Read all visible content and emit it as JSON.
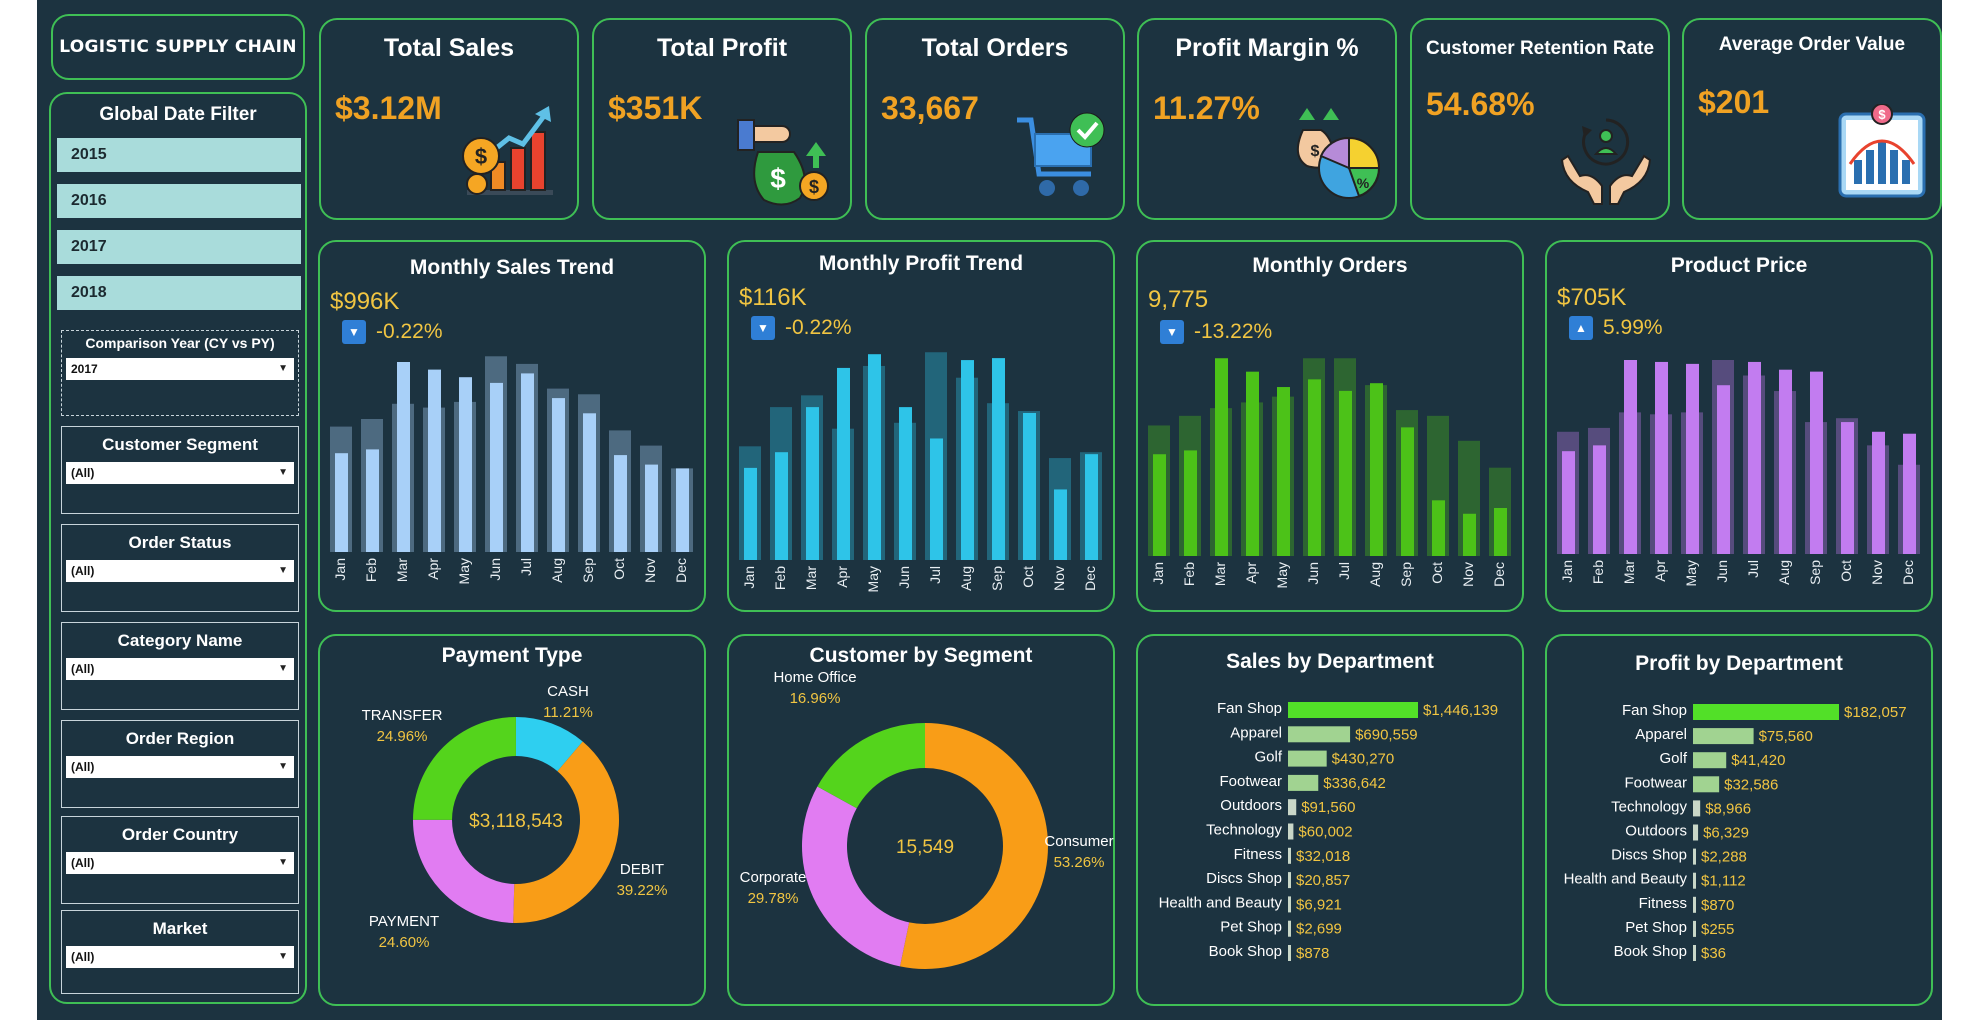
{
  "sidebar": {
    "app_title": "LOGISTIC SUPPLY CHAIN",
    "date_filter_label": "Global Date Filter",
    "years": [
      "2015",
      "2016",
      "2017",
      "2018"
    ],
    "comparison": {
      "label": "Comparison Year (CY vs PY)",
      "value": "2017"
    },
    "customer_segment": {
      "label": "Customer Segment",
      "value": "(All)"
    },
    "order_status": {
      "label": "Order Status",
      "value": "(All)"
    },
    "category_name": {
      "label": "Category Name",
      "value": "(All)"
    },
    "order_region": {
      "label": "Order Region",
      "value": "(All)"
    },
    "order_country": {
      "label": "Order Country",
      "value": "(All)"
    },
    "market": {
      "label": "Market",
      "value": "(All)"
    }
  },
  "kpis": [
    {
      "title": "Total Sales",
      "value": "$3.12M",
      "icon": "sales-growth-icon"
    },
    {
      "title": "Total Profit",
      "value": "$351K",
      "icon": "money-bag-icon"
    },
    {
      "title": "Total Orders",
      "value": "33,667",
      "icon": "shopping-cart-icon"
    },
    {
      "title": "Profit Margin %",
      "value": "11.27%",
      "icon": "profit-pie-icon"
    },
    {
      "title": "Customer Retention Rate",
      "value": "54.68%",
      "icon": "retention-hands-icon"
    },
    {
      "title": "Average Order Value",
      "value": "$201",
      "icon": "order-value-chart-icon"
    }
  ],
  "colors": {
    "background": "#1c3340",
    "panel_border": "#3fbf55",
    "kpi_value": "#f0a223",
    "label_yellow": "#f1c542",
    "sales_bar": "#a8d0f8",
    "profit_bar": "#2ec4e8",
    "orders_bar": "#4cc218",
    "price_bar": "#c27cf0",
    "dept_bar": "#52e028"
  },
  "chart_data": [
    {
      "type": "bar",
      "title": "Monthly Sales Trend",
      "headline": "$996K",
      "change": "-0.22%",
      "direction": "down",
      "categories": [
        "Jan",
        "Feb",
        "Mar",
        "Apr",
        "May",
        "Jun",
        "Jul",
        "Aug",
        "Sep",
        "Oct",
        "Nov",
        "Dec"
      ],
      "series": [
        {
          "name": "CY",
          "values": [
            52,
            54,
            100,
            96,
            92,
            89,
            94,
            81,
            73,
            51,
            46,
            44
          ]
        },
        {
          "name": "PY",
          "values": [
            66,
            70,
            78,
            76,
            79,
            103,
            99,
            86,
            83,
            64,
            56,
            44
          ]
        }
      ]
    },
    {
      "type": "bar",
      "title": "Monthly Profit Trend",
      "headline": "$116K",
      "change": "-0.22%",
      "direction": "down",
      "categories": [
        "Jan",
        "Feb",
        "Mar",
        "Apr",
        "May",
        "Jun",
        "Jul",
        "Aug",
        "Sep",
        "Oct",
        "Nov",
        "Dec"
      ],
      "series": [
        {
          "name": "CY",
          "values": [
            47,
            55,
            78,
            98,
            105,
            78,
            62,
            102,
            103,
            75,
            36,
            54
          ]
        },
        {
          "name": "PY",
          "values": [
            58,
            78,
            84,
            67,
            99,
            70,
            106,
            93,
            80,
            76,
            52,
            55
          ]
        }
      ]
    },
    {
      "type": "bar",
      "title": "Monthly Orders",
      "headline": "9,775",
      "change": "-13.22%",
      "direction": "down",
      "categories": [
        "Jan",
        "Feb",
        "Mar",
        "Apr",
        "May",
        "Jun",
        "Jul",
        "Aug",
        "Sep",
        "Oct",
        "Nov",
        "Dec"
      ],
      "series": [
        {
          "name": "CY",
          "values": [
            53,
            55,
            103,
            96,
            88,
            92,
            86,
            90,
            67,
            29,
            22,
            25
          ]
        },
        {
          "name": "PY",
          "values": [
            68,
            73,
            77,
            80,
            83,
            103,
            103,
            89,
            76,
            73,
            60,
            46
          ]
        }
      ]
    },
    {
      "type": "bar",
      "title": "Product Price",
      "headline": "$705K",
      "change": "5.99%",
      "direction": "up",
      "categories": [
        "Jan",
        "Feb",
        "Mar",
        "Apr",
        "May",
        "Jun",
        "Jul",
        "Aug",
        "Sep",
        "Oct",
        "Nov",
        "Dec"
      ],
      "series": [
        {
          "name": "CY",
          "values": [
            53,
            56,
            100,
            99,
            98,
            87,
            99,
            95,
            94,
            68,
            63,
            62
          ]
        },
        {
          "name": "PY",
          "values": [
            63,
            65,
            73,
            72,
            73,
            100,
            92,
            84,
            68,
            70,
            56,
            46
          ]
        }
      ]
    },
    {
      "type": "pie",
      "title": "Payment Type",
      "center_label": "$3,118,543",
      "slices": [
        {
          "name": "CASH",
          "pct": "11.21%",
          "value": 11.21,
          "color": "#2ecff0"
        },
        {
          "name": "DEBIT",
          "pct": "39.22%",
          "value": 39.22,
          "color": "#f99d17"
        },
        {
          "name": "PAYMENT",
          "pct": "24.60%",
          "value": 24.6,
          "color": "#e17cf2"
        },
        {
          "name": "TRANSFER",
          "pct": "24.96%",
          "value": 24.96,
          "color": "#54d41c"
        }
      ]
    },
    {
      "type": "pie",
      "title": "Customer by Segment",
      "center_label": "15,549",
      "slices": [
        {
          "name": "Consumer",
          "pct": "53.26%",
          "value": 53.26,
          "color": "#f99d17"
        },
        {
          "name": "Corporate",
          "pct": "29.78%",
          "value": 29.78,
          "color": "#e17cf2"
        },
        {
          "name": "Home Office",
          "pct": "16.96%",
          "value": 16.96,
          "color": "#54d41c"
        }
      ]
    },
    {
      "type": "bar",
      "orientation": "horizontal",
      "title": "Sales by Department",
      "categories": [
        "Fan Shop",
        "Apparel",
        "Golf",
        "Footwear",
        "Outdoors",
        "Technology",
        "Fitness",
        "Discs Shop",
        "Health and Beauty",
        "Pet Shop",
        "Book Shop"
      ],
      "values": [
        1446139,
        690559,
        430270,
        336642,
        91560,
        60002,
        32018,
        20857,
        6921,
        2699,
        878
      ],
      "labels": [
        "$1,446,139",
        "$690,559",
        "$430,270",
        "$336,642",
        "$91,560",
        "$60,002",
        "$32,018",
        "$20,857",
        "$6,921",
        "$2,699",
        "$878"
      ]
    },
    {
      "type": "bar",
      "orientation": "horizontal",
      "title": "Profit by Department",
      "categories": [
        "Fan Shop",
        "Apparel",
        "Golf",
        "Footwear",
        "Technology",
        "Outdoors",
        "Discs Shop",
        "Health and Beauty",
        "Fitness",
        "Pet Shop",
        "Book Shop"
      ],
      "values": [
        182057,
        75560,
        41420,
        32586,
        8966,
        6329,
        2288,
        1112,
        870,
        255,
        36
      ],
      "labels": [
        "$182,057",
        "$75,560",
        "$41,420",
        "$32,586",
        "$8,966",
        "$6,329",
        "$2,288",
        "$1,112",
        "$870",
        "$255",
        "$36"
      ]
    }
  ]
}
